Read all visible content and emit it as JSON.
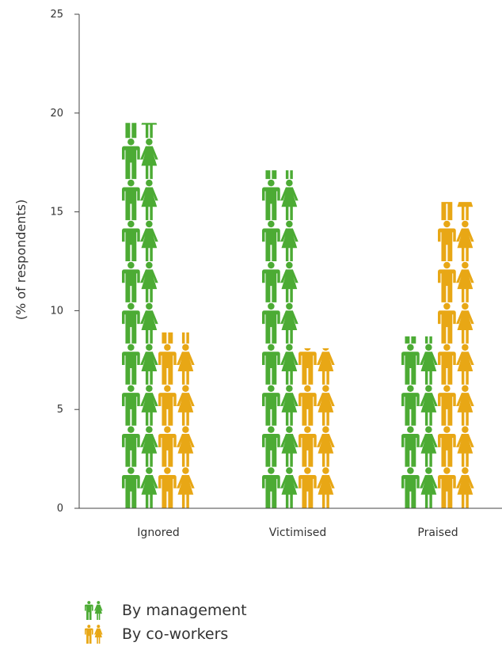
{
  "chart_data": {
    "type": "bar",
    "categories": [
      "Ignored",
      "Victimised",
      "Praised"
    ],
    "series": [
      {
        "name": "By management",
        "values": [
          19.5,
          17.1,
          8.7
        ],
        "color": "#4cab34"
      },
      {
        "name": "By co-workers",
        "values": [
          8.9,
          8.1,
          15.5
        ],
        "color": "#e8a715"
      }
    ],
    "ylabel": "(% of respondents)",
    "ylim": [
      0,
      25
    ],
    "yticks": [
      0,
      5,
      10,
      15,
      20,
      25
    ],
    "grid": false,
    "legend": "bottom-left",
    "mark": "pictogram (male and female figures)"
  },
  "legend": {
    "items": [
      {
        "label": "By management",
        "color": "#4cab34",
        "icon": "people-icon"
      },
      {
        "label": "By co-workers",
        "color": "#e8a715",
        "icon": "people-icon"
      }
    ]
  }
}
